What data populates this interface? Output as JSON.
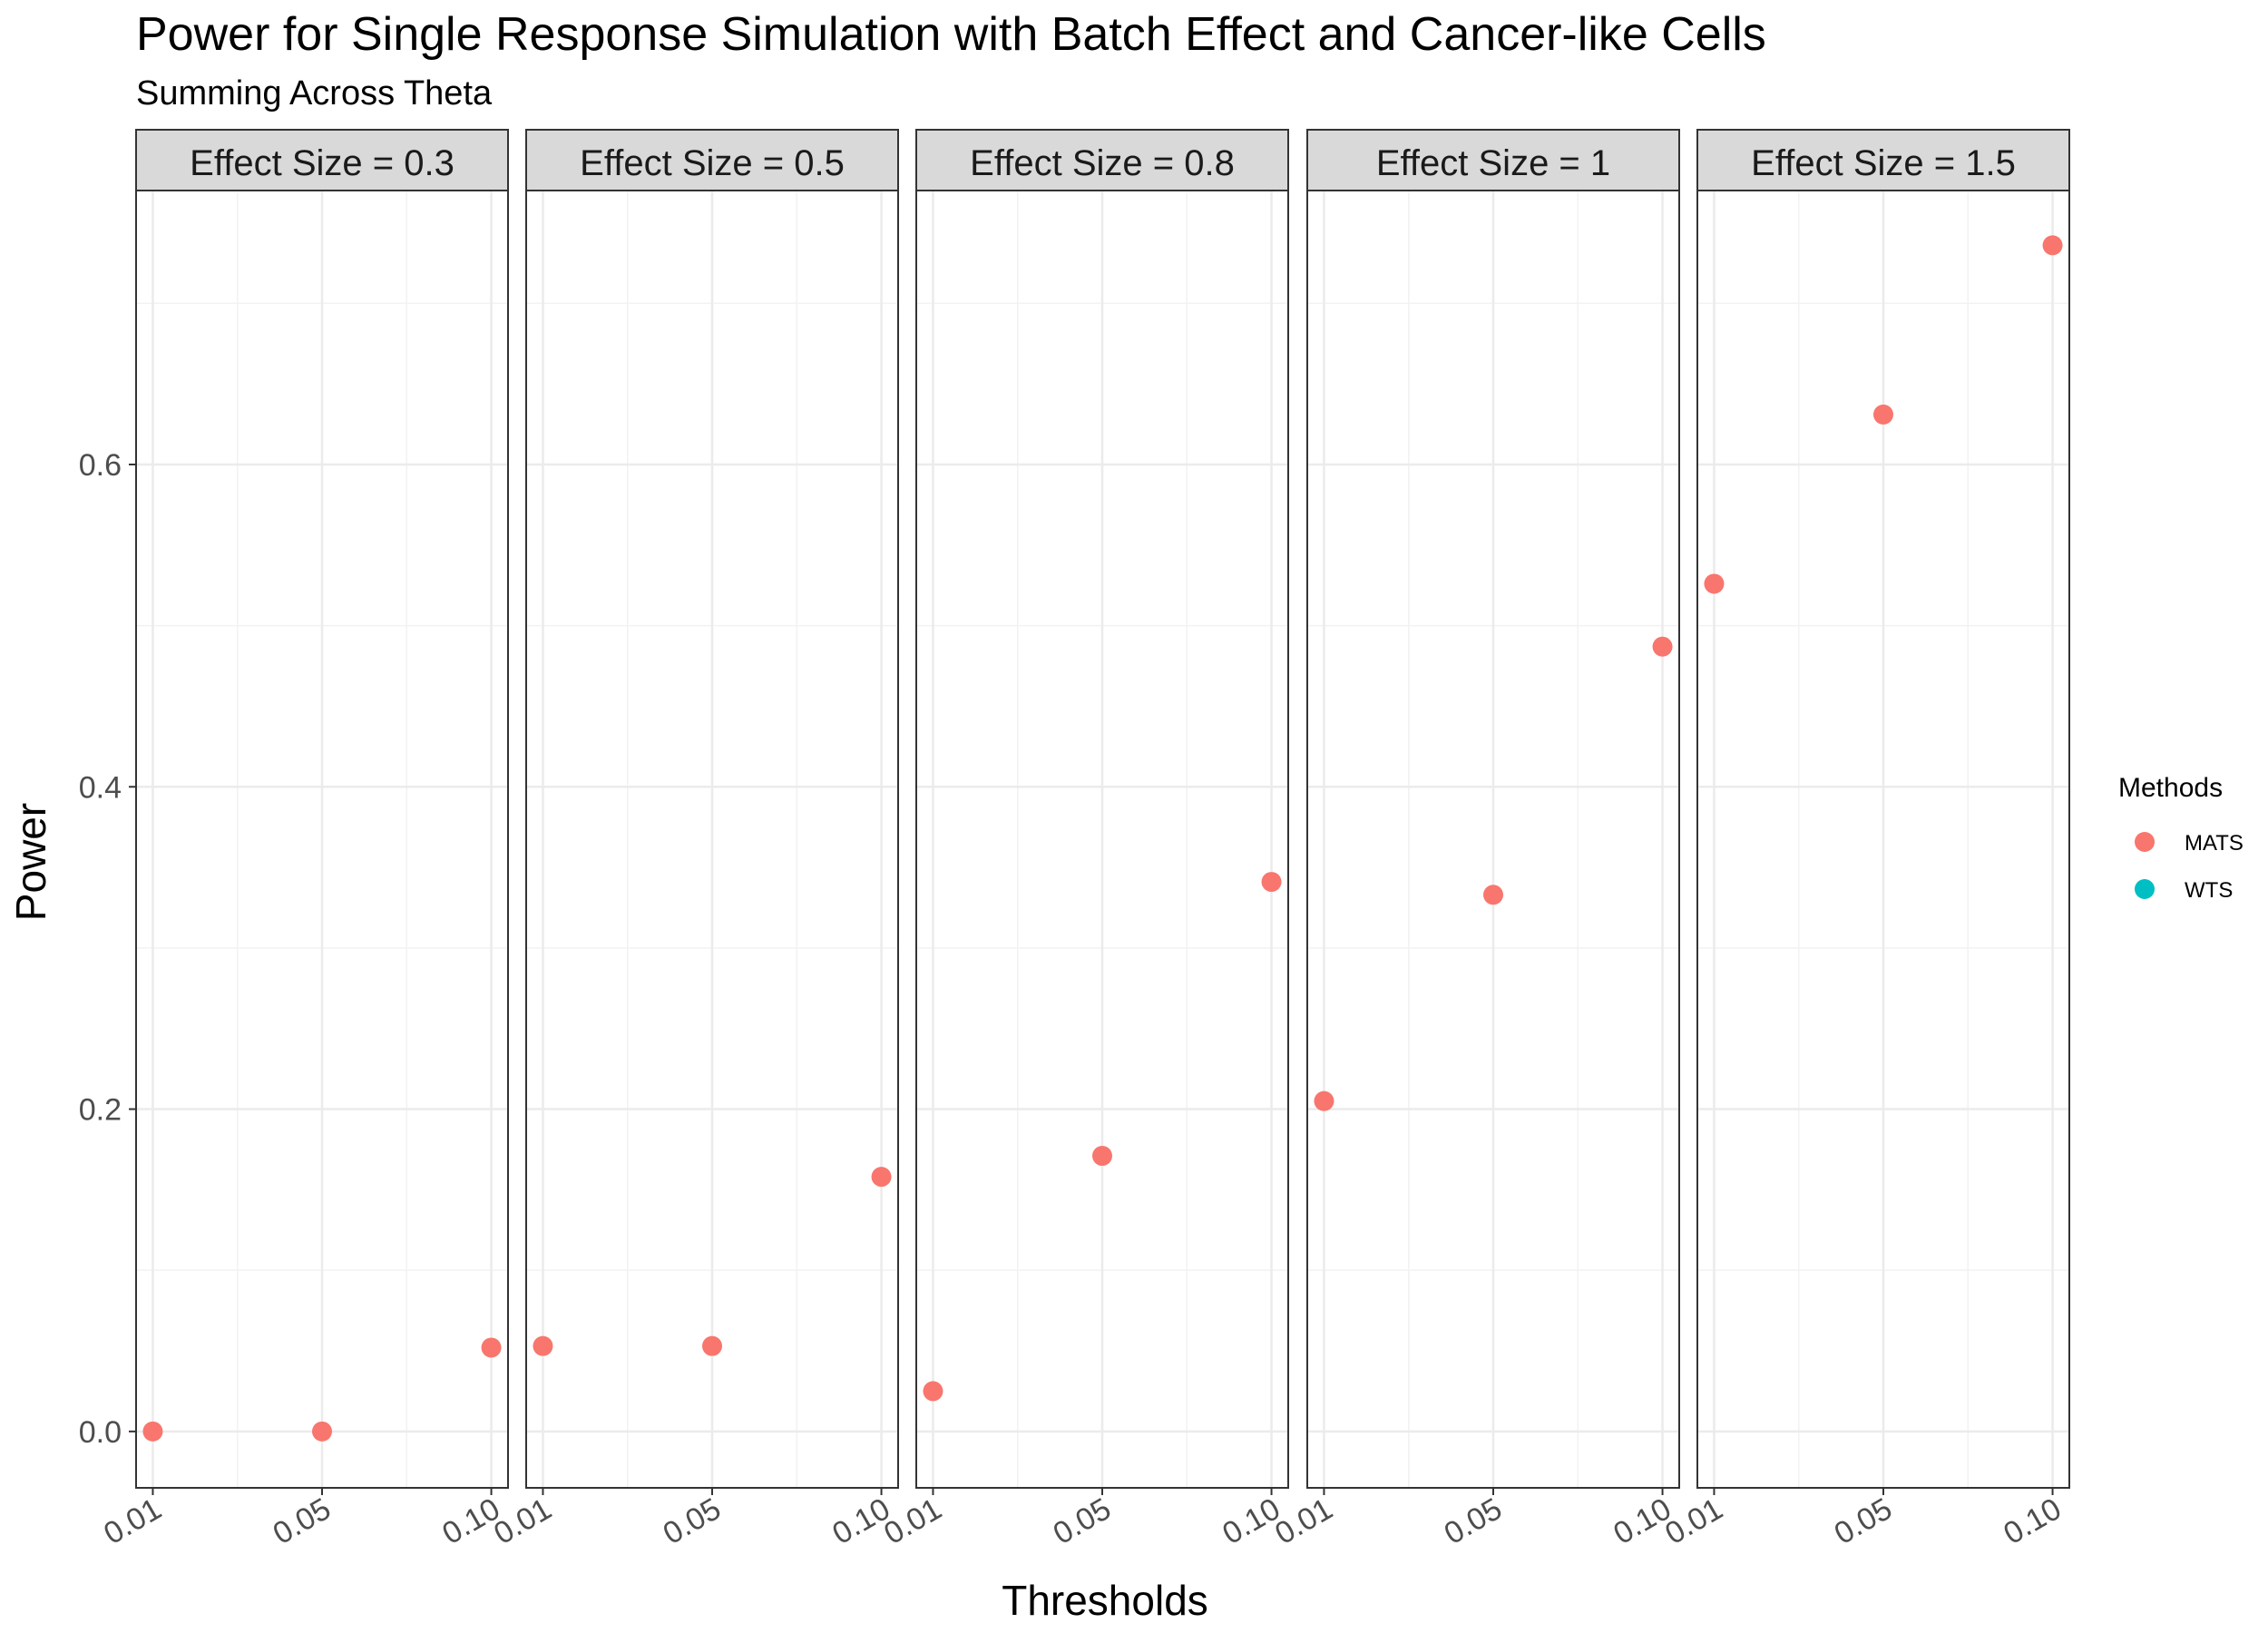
{
  "chart_data": {
    "type": "scatter",
    "title": "Power for Single Response Simulation with Batch Effect and Cancer-like Cells",
    "subtitle": "Summing Across Theta",
    "xlabel": "Thresholds",
    "ylabel": "Power",
    "x_categories": [
      "0.01",
      "0.05",
      "0.10"
    ],
    "ylim": [
      -0.035,
      0.77
    ],
    "y_ticks": [
      "0.0",
      "0.2",
      "0.4",
      "0.6"
    ],
    "y_tick_values": [
      0.0,
      0.2,
      0.4,
      0.6
    ],
    "grid": true,
    "legend": {
      "title": "Methods",
      "position": "right",
      "entries": [
        {
          "name": "MATS",
          "color": "#F8766D"
        },
        {
          "name": "WTS",
          "color": "#00BFC4"
        }
      ]
    },
    "facets": [
      {
        "label": "Effect Size = 0.3",
        "series": [
          {
            "name": "MATS",
            "color": "#F8766D",
            "values": [
              0.0,
              0.0,
              0.052
            ]
          }
        ]
      },
      {
        "label": "Effect Size = 0.5",
        "series": [
          {
            "name": "MATS",
            "color": "#F8766D",
            "values": [
              0.053,
              0.053,
              0.158
            ]
          }
        ]
      },
      {
        "label": "Effect Size = 0.8",
        "series": [
          {
            "name": "MATS",
            "color": "#F8766D",
            "values": [
              0.025,
              0.171,
              0.341
            ]
          }
        ]
      },
      {
        "label": "Effect Size = 1",
        "series": [
          {
            "name": "MATS",
            "color": "#F8766D",
            "values": [
              0.205,
              0.333,
              0.487
            ]
          }
        ]
      },
      {
        "label": "Effect Size = 1.5",
        "series": [
          {
            "name": "MATS",
            "color": "#F8766D",
            "values": [
              0.526,
              0.631,
              0.736
            ]
          }
        ]
      }
    ]
  }
}
